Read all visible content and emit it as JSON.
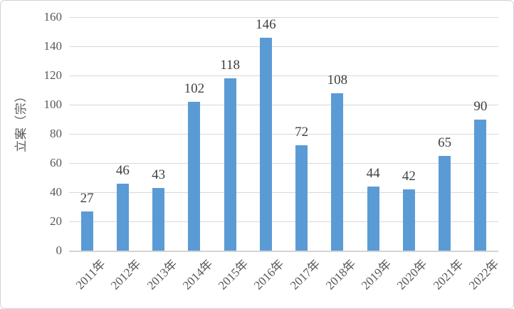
{
  "chart_data": {
    "type": "bar",
    "title": "",
    "categories": [
      "2011年",
      "2012年",
      "2013年",
      "2014年",
      "2015年",
      "2016年",
      "2017年",
      "2018年",
      "2019年",
      "2020年",
      "2021年",
      "2022年"
    ],
    "values": [
      27,
      46,
      43,
      102,
      118,
      146,
      72,
      108,
      44,
      42,
      65,
      90
    ],
    "xlabel": "",
    "ylabel": "立案（宗）",
    "ylim": [
      0,
      160
    ],
    "yticks": [
      0,
      20,
      40,
      60,
      80,
      100,
      120,
      140,
      160
    ],
    "grid": "horizontal",
    "legend_position": "none",
    "data_labels": true,
    "colors": {
      "bar_fill": "#5B9BD5",
      "gridline": "#D9D9D9",
      "axis_line": "#D3D3D3",
      "value_label_text": "#404040",
      "tick_label_text": "#595959",
      "frame_border": "#D2D2D2",
      "background": "#FFFFFF"
    }
  }
}
